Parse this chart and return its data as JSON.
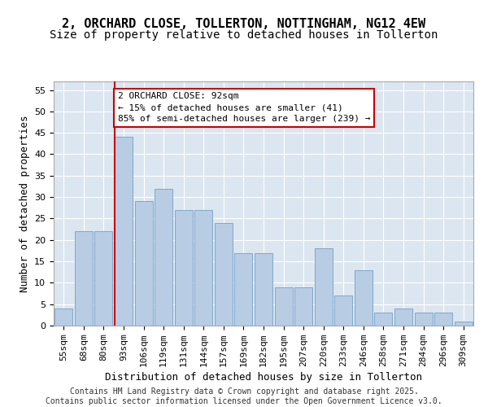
{
  "title_line1": "2, ORCHARD CLOSE, TOLLERTON, NOTTINGHAM, NG12 4EW",
  "title_line2": "Size of property relative to detached houses in Tollerton",
  "xlabel": "Distribution of detached houses by size in Tollerton",
  "ylabel": "Number of detached properties",
  "categories": [
    "55sqm",
    "68sqm",
    "80sqm",
    "93sqm",
    "106sqm",
    "119sqm",
    "131sqm",
    "144sqm",
    "157sqm",
    "169sqm",
    "182sqm",
    "195sqm",
    "207sqm",
    "220sqm",
    "233sqm",
    "246sqm",
    "258sqm",
    "271sqm",
    "284sqm",
    "296sqm",
    "309sqm"
  ],
  "values": [
    4,
    22,
    22,
    44,
    29,
    32,
    27,
    27,
    24,
    17,
    17,
    9,
    9,
    18,
    7,
    13,
    3,
    4,
    3,
    3,
    1
  ],
  "bar_color": "#b8cce4",
  "bar_edge_color": "#7fa8cc",
  "vline_x_index": 3,
  "vline_color": "#cc0000",
  "annotation_text": "2 ORCHARD CLOSE: 92sqm\n← 15% of detached houses are smaller (41)\n85% of semi-detached houses are larger (239) →",
  "annotation_box_color": "#ffffff",
  "annotation_box_edge": "#cc0000",
  "ylim": [
    0,
    57
  ],
  "yticks": [
    0,
    5,
    10,
    15,
    20,
    25,
    30,
    35,
    40,
    45,
    50,
    55
  ],
  "background_color": "#dce6f0",
  "grid_color": "#ffffff",
  "footer_text": "Contains HM Land Registry data © Crown copyright and database right 2025.\nContains public sector information licensed under the Open Government Licence v3.0.",
  "title_fontsize": 11,
  "subtitle_fontsize": 10,
  "axis_label_fontsize": 9,
  "tick_fontsize": 8,
  "annotation_fontsize": 8,
  "footer_fontsize": 7
}
